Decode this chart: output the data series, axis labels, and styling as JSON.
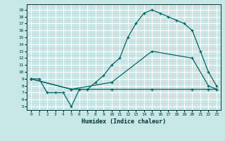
{
  "xlabel": "Humidex (Indice chaleur)",
  "bg_color": "#c8e8e8",
  "grid_color": "#ffffff",
  "grid_minor_color": "#ddf0f0",
  "line_color": "#006666",
  "xlim": [
    -0.5,
    23.5
  ],
  "ylim": [
    4.5,
    19.8
  ],
  "xticks": [
    0,
    1,
    2,
    3,
    4,
    5,
    6,
    7,
    8,
    9,
    10,
    11,
    12,
    13,
    14,
    15,
    16,
    17,
    18,
    19,
    20,
    21,
    22,
    23
  ],
  "yticks": [
    5,
    6,
    7,
    8,
    9,
    10,
    11,
    12,
    13,
    14,
    15,
    16,
    17,
    18,
    19
  ],
  "line1_x": [
    0,
    1,
    2,
    3,
    4,
    5,
    6,
    7,
    8,
    9,
    10,
    11,
    12,
    13,
    14,
    15,
    16,
    17,
    18,
    19,
    20,
    21,
    22,
    23
  ],
  "line1_y": [
    9,
    9,
    7,
    7,
    7,
    5,
    7.5,
    7.5,
    8.5,
    9.5,
    11,
    12,
    15,
    17,
    18.5,
    19,
    18.5,
    18,
    17.5,
    17,
    16,
    13,
    10,
    8
  ],
  "line2_x": [
    0,
    5,
    10,
    15,
    20,
    22,
    23
  ],
  "line2_y": [
    9,
    7.5,
    8.5,
    13,
    12,
    8,
    7.5
  ],
  "line3_x": [
    0,
    5,
    10,
    15,
    20,
    22,
    23
  ],
  "line3_y": [
    9,
    7.5,
    7.5,
    7.5,
    7.5,
    7.5,
    7.5
  ]
}
